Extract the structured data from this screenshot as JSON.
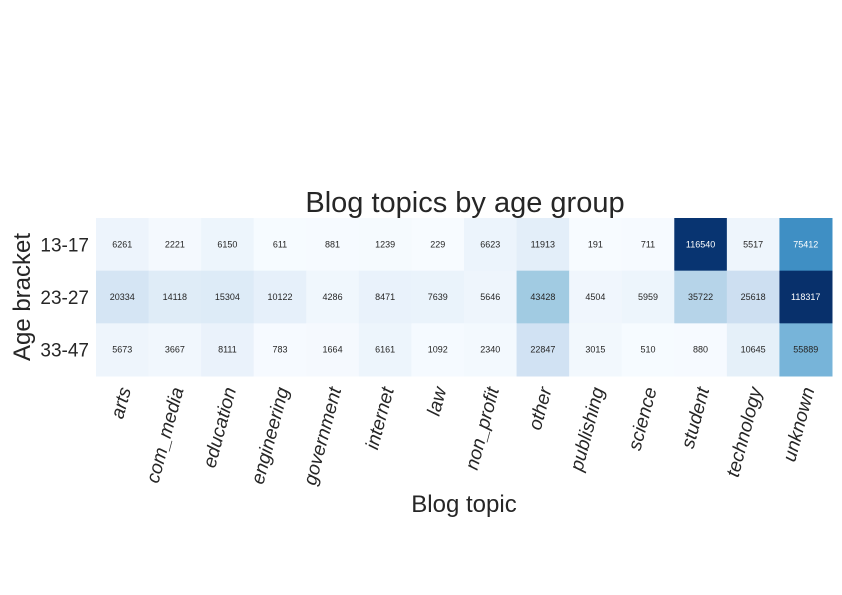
{
  "chart_data": {
    "type": "heatmap",
    "title": "Blog topics by age group",
    "xlabel": "Blog topic",
    "ylabel": "Age bracket",
    "rows": [
      "13-17",
      "23-27",
      "33-47"
    ],
    "columns": [
      "arts",
      "com_media",
      "education",
      "engineering",
      "government",
      "internet",
      "law",
      "non_profit",
      "other",
      "publishing",
      "science",
      "student",
      "technology",
      "unknown"
    ],
    "values": [
      [
        6261,
        2221,
        6150,
        611,
        881,
        1239,
        229,
        6623,
        11913,
        191,
        711,
        116540,
        5517,
        75412
      ],
      [
        20334,
        14118,
        15304,
        10122,
        4286,
        8471,
        7639,
        5646,
        43428,
        4504,
        5959,
        35722,
        25618,
        118317
      ],
      [
        5673,
        3667,
        8111,
        783,
        1664,
        6161,
        1092,
        2340,
        22847,
        3015,
        510,
        880,
        10645,
        55889
      ]
    ],
    "colormap": "Blues",
    "colorbar": false,
    "x_tick_rotation": 75
  }
}
